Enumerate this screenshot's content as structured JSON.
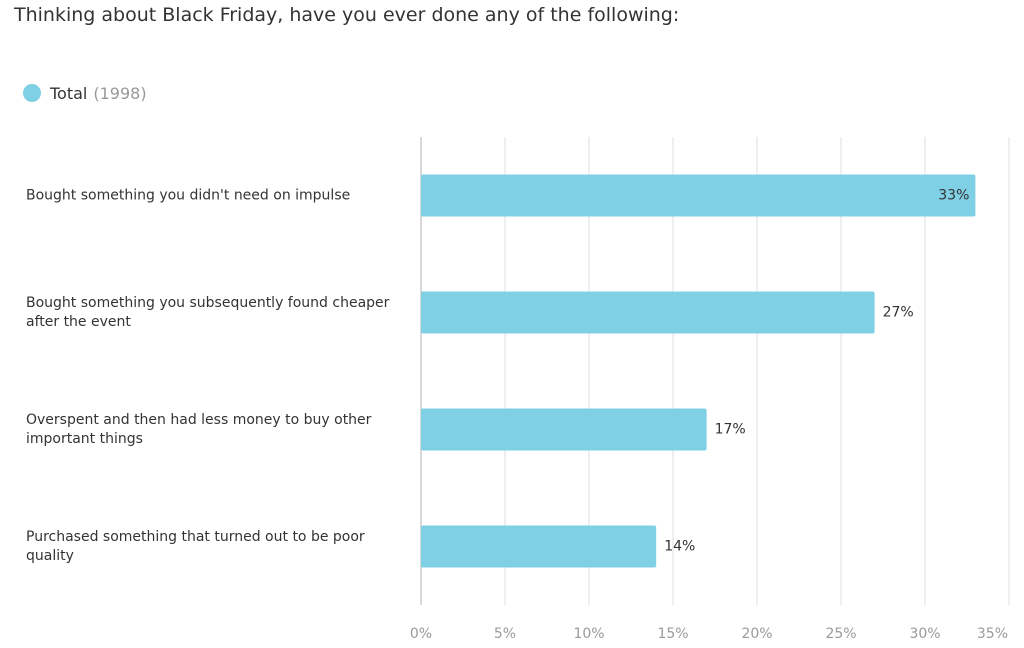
{
  "chart_data": {
    "type": "bar",
    "orientation": "horizontal",
    "title": "Thinking about Black Friday, have you ever done any of the following:",
    "categories": [
      "Bought something you didn't need on impulse",
      "Bought something you subsequently found cheaper after the event",
      "Overspent and then had less money to buy other important things",
      "Purchased something that turned out to be poor quality"
    ],
    "series": [
      {
        "name": "Total",
        "legend_note": "(1998)",
        "color": "#7fd0e5",
        "values": [
          33,
          27,
          17,
          14
        ],
        "value_labels": [
          "33%",
          "27%",
          "17%",
          "14%"
        ]
      }
    ],
    "xlim": [
      0,
      35
    ],
    "xticks": [
      {
        "value": 0,
        "label": "0%"
      },
      {
        "value": 5,
        "label": "5%"
      },
      {
        "value": 10,
        "label": "10%"
      },
      {
        "value": 15,
        "label": "15%"
      },
      {
        "value": 20,
        "label": "20%"
      },
      {
        "value": 25,
        "label": "25%"
      },
      {
        "value": 30,
        "label": "30%"
      },
      {
        "value": 35,
        "label": "35%"
      }
    ],
    "grid": true
  }
}
